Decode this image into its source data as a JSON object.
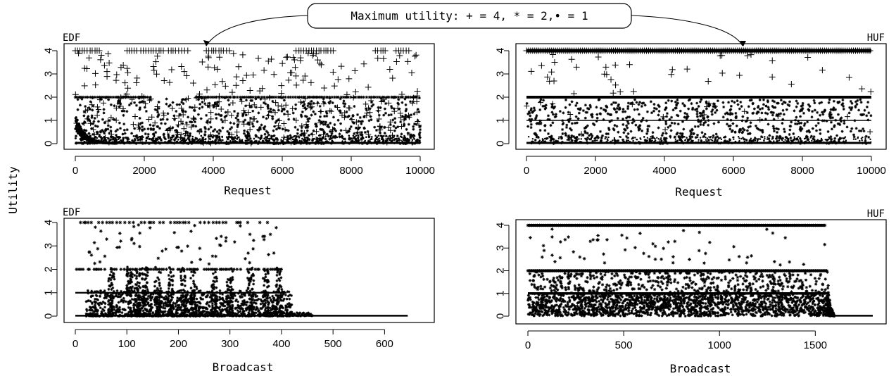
{
  "callout": {
    "text": "Maximum utility: + = 4, * = 2,• = 1"
  },
  "shared_ylabel": "Utility",
  "chart_data": [
    {
      "id": "edf-request",
      "type": "scatter",
      "title": "EDF",
      "xlabel": "Request",
      "ylabel": "",
      "xlim": [
        0,
        10000
      ],
      "ylim": [
        0,
        4
      ],
      "xticks": [
        0,
        2000,
        4000,
        6000,
        8000,
        10000
      ],
      "yticks": [
        0,
        1,
        2,
        3,
        4
      ],
      "grid": false,
      "series": [
        {
          "marker": "+",
          "max_utility": 4,
          "clusters_at_4": [
            [
              0,
              700
            ],
            [
              1500,
              1800
            ],
            [
              1900,
              2600
            ],
            [
              2700,
              3300
            ],
            [
              3800,
              4500
            ],
            [
              6400,
              7500
            ],
            [
              8700,
              9000
            ],
            [
              9300,
              9700
            ]
          ]
        },
        {
          "marker": "*",
          "max_utility": 2,
          "band_at_2": [
            [
              0,
              2200
            ],
            [
              3500,
              9900
            ]
          ]
        },
        {
          "marker": "•",
          "max_utility": 1,
          "band_at_0": [
            [
              0,
              10000
            ]
          ]
        }
      ]
    },
    {
      "id": "huf-request",
      "type": "scatter",
      "title": "HUF",
      "xlabel": "Request",
      "ylabel": "",
      "xlim": [
        0,
        10000
      ],
      "ylim": [
        0,
        4
      ],
      "xticks": [
        0,
        2000,
        4000,
        6000,
        8000,
        10000
      ],
      "yticks": [
        0,
        1,
        2,
        3,
        4
      ],
      "grid": false,
      "series": [
        {
          "marker": "+",
          "max_utility": 4,
          "band_at_4": [
            [
              0,
              10000
            ]
          ]
        },
        {
          "marker": "*",
          "max_utility": 2,
          "band_at_2": [
            [
              0,
              10000
            ]
          ]
        },
        {
          "marker": "•",
          "max_utility": 1,
          "band_at_1": [
            [
              0,
              10000
            ]
          ],
          "band_at_0": [
            [
              0,
              10000
            ]
          ]
        }
      ]
    },
    {
      "id": "edf-broadcast",
      "type": "scatter",
      "title": "EDF",
      "xlabel": "Broadcast",
      "ylabel": "",
      "xlim": [
        0,
        650
      ],
      "ylim": [
        0,
        4
      ],
      "xticks": [
        0,
        100,
        200,
        300,
        400,
        500,
        600
      ],
      "yticks": [
        0,
        1,
        2,
        3,
        4
      ],
      "grid": false,
      "series": [
        {
          "marker": "*",
          "points_at_4_range": [
            10,
            390
          ],
          "band_at_2_range": [
            0,
            400
          ],
          "band_at_1_range": [
            0,
            410
          ],
          "tail_at_0_range": [
            420,
            645
          ]
        }
      ]
    },
    {
      "id": "huf-broadcast",
      "type": "scatter",
      "title": "HUF",
      "xlabel": "Broadcast",
      "ylabel": "",
      "xlim": [
        0,
        1800
      ],
      "ylim": [
        0,
        4
      ],
      "xticks": [
        0,
        500,
        1000,
        1500
      ],
      "yticks": [
        0,
        1,
        2,
        3,
        4
      ],
      "grid": false,
      "series": [
        {
          "marker": "*",
          "band_at_4_range": [
            0,
            1550
          ],
          "band_at_2_range": [
            0,
            1560
          ],
          "band_at_1_range": [
            0,
            1570
          ],
          "tail_at_0_range": [
            1600,
            1800
          ]
        }
      ]
    }
  ]
}
